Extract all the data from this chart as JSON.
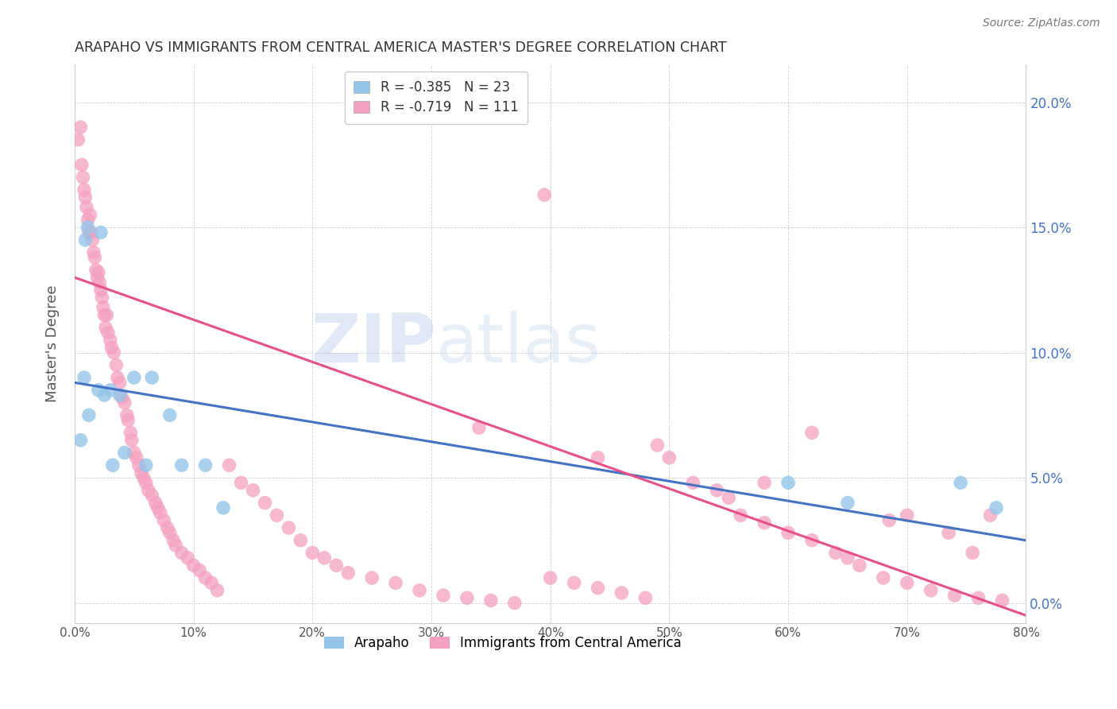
{
  "title": "ARAPAHO VS IMMIGRANTS FROM CENTRAL AMERICA MASTER'S DEGREE CORRELATION CHART",
  "source": "Source: ZipAtlas.com",
  "ylabel": "Master's Degree",
  "legend_label1": "Arapaho",
  "legend_label2": "Immigrants from Central America",
  "r1": -0.385,
  "n1": 23,
  "r2": -0.719,
  "n2": 111,
  "color1": "#94C5E8",
  "color2": "#F4A0C0",
  "line_color1": "#4472C4",
  "line_color2": "#E8508A",
  "right_axis_color": "#4472C4",
  "watermark_zip_color": "#C8D8EE",
  "watermark_atlas_color": "#C8D8EE",
  "arapaho_x": [
    0.005,
    0.022,
    0.008,
    0.009,
    0.011,
    0.012,
    0.02,
    0.025,
    0.03,
    0.032,
    0.038,
    0.042,
    0.05,
    0.06,
    0.065,
    0.08,
    0.09,
    0.11,
    0.125,
    0.6,
    0.65,
    0.745,
    0.775
  ],
  "arapaho_y": [
    0.065,
    0.148,
    0.09,
    0.145,
    0.15,
    0.075,
    0.085,
    0.083,
    0.085,
    0.055,
    0.083,
    0.06,
    0.09,
    0.055,
    0.09,
    0.075,
    0.055,
    0.055,
    0.038,
    0.048,
    0.04,
    0.048,
    0.038
  ],
  "immigrants_x": [
    0.003,
    0.005,
    0.006,
    0.007,
    0.008,
    0.009,
    0.01,
    0.011,
    0.012,
    0.013,
    0.014,
    0.015,
    0.016,
    0.017,
    0.018,
    0.019,
    0.02,
    0.021,
    0.022,
    0.023,
    0.024,
    0.025,
    0.026,
    0.027,
    0.028,
    0.03,
    0.031,
    0.033,
    0.035,
    0.036,
    0.038,
    0.04,
    0.042,
    0.044,
    0.045,
    0.047,
    0.048,
    0.05,
    0.052,
    0.054,
    0.056,
    0.058,
    0.06,
    0.062,
    0.065,
    0.068,
    0.07,
    0.072,
    0.075,
    0.078,
    0.08,
    0.083,
    0.085,
    0.09,
    0.095,
    0.1,
    0.105,
    0.11,
    0.115,
    0.12,
    0.13,
    0.14,
    0.15,
    0.16,
    0.17,
    0.18,
    0.19,
    0.2,
    0.21,
    0.22,
    0.23,
    0.25,
    0.27,
    0.29,
    0.31,
    0.33,
    0.35,
    0.37,
    0.4,
    0.42,
    0.44,
    0.46,
    0.48,
    0.5,
    0.52,
    0.54,
    0.55,
    0.56,
    0.58,
    0.6,
    0.62,
    0.64,
    0.65,
    0.66,
    0.68,
    0.7,
    0.72,
    0.74,
    0.76,
    0.78,
    0.395,
    0.49,
    0.34,
    0.58,
    0.44,
    0.62,
    0.685,
    0.7,
    0.735,
    0.755,
    0.77
  ],
  "immigrants_y": [
    0.185,
    0.19,
    0.175,
    0.17,
    0.165,
    0.162,
    0.158,
    0.153,
    0.148,
    0.155,
    0.148,
    0.145,
    0.14,
    0.138,
    0.133,
    0.13,
    0.132,
    0.128,
    0.125,
    0.122,
    0.118,
    0.115,
    0.11,
    0.115,
    0.108,
    0.105,
    0.102,
    0.1,
    0.095,
    0.09,
    0.088,
    0.082,
    0.08,
    0.075,
    0.073,
    0.068,
    0.065,
    0.06,
    0.058,
    0.055,
    0.052,
    0.05,
    0.048,
    0.045,
    0.043,
    0.04,
    0.038,
    0.036,
    0.033,
    0.03,
    0.028,
    0.025,
    0.023,
    0.02,
    0.018,
    0.015,
    0.013,
    0.01,
    0.008,
    0.005,
    0.055,
    0.048,
    0.045,
    0.04,
    0.035,
    0.03,
    0.025,
    0.02,
    0.018,
    0.015,
    0.012,
    0.01,
    0.008,
    0.005,
    0.003,
    0.002,
    0.001,
    0.0,
    0.01,
    0.008,
    0.006,
    0.004,
    0.002,
    0.058,
    0.048,
    0.045,
    0.042,
    0.035,
    0.032,
    0.028,
    0.025,
    0.02,
    0.018,
    0.015,
    0.01,
    0.008,
    0.005,
    0.003,
    0.002,
    0.001,
    0.163,
    0.063,
    0.07,
    0.048,
    0.058,
    0.068,
    0.033,
    0.035,
    0.028,
    0.02,
    0.035
  ],
  "blue_line": [
    0.0,
    0.8,
    0.088,
    0.025
  ],
  "pink_line": [
    0.0,
    0.8,
    0.13,
    -0.005
  ],
  "xlim": [
    0.0,
    0.8
  ],
  "ylim": [
    -0.008,
    0.215
  ],
  "xticks": [
    0.0,
    0.1,
    0.2,
    0.3,
    0.4,
    0.5,
    0.6,
    0.7,
    0.8
  ],
  "yticks": [
    0.0,
    0.05,
    0.1,
    0.15,
    0.2
  ]
}
